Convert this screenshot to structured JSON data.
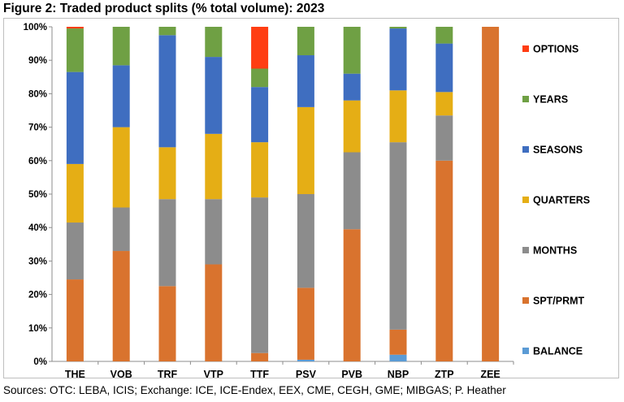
{
  "title": "Figure 2: Traded product splits (% total volume): 2023",
  "source": "Sources: OTC: LEBA, ICIS; Exchange: ICE, ICE-Endex, EEX, CME, CEGH, GME; MIBGAS; P. Heather",
  "chart_data": {
    "type": "bar",
    "stacked": true,
    "title": "Traded product splits (% total volume): 2023",
    "ylabel": "% total volume",
    "xlabel": "",
    "ylim": [
      0,
      100
    ],
    "yticks": [
      "0%",
      "10%",
      "20%",
      "30%",
      "40%",
      "50%",
      "60%",
      "70%",
      "80%",
      "90%",
      "100%"
    ],
    "grid": false,
    "legend_position": "right",
    "categories": [
      "THE",
      "VOB",
      "TRF",
      "VTP",
      "TTF",
      "PSV",
      "PVB",
      "NBP",
      "ZTP",
      "ZEE"
    ],
    "series": [
      {
        "name": "BALANCE",
        "color": "#5B9BD5",
        "values": [
          0,
          0,
          0,
          0,
          0,
          0.5,
          0,
          2,
          0,
          0
        ]
      },
      {
        "name": "SPT/PRMT",
        "color": "#D9732E",
        "values": [
          24.5,
          33,
          22.5,
          29,
          2.5,
          21.5,
          39.5,
          7.5,
          60,
          100
        ]
      },
      {
        "name": "MONTHS",
        "color": "#8C8C8C",
        "values": [
          17,
          13,
          26,
          19.5,
          46.5,
          28,
          23,
          56,
          13.5,
          0
        ]
      },
      {
        "name": "QUARTERS",
        "color": "#E5AE15",
        "values": [
          17.5,
          24,
          15.5,
          19.5,
          16.5,
          26,
          15.5,
          15.5,
          7,
          0
        ]
      },
      {
        "name": "SEASONS",
        "color": "#3F6EC0",
        "values": [
          27.5,
          18.5,
          33.5,
          23,
          16.5,
          15.5,
          8,
          18.5,
          14.5,
          0
        ]
      },
      {
        "name": "YEARS",
        "color": "#6FA044",
        "values": [
          13,
          11.5,
          2.5,
          9,
          5.5,
          8.5,
          14,
          0.5,
          5,
          0
        ]
      },
      {
        "name": "OPTIONS",
        "color": "#FF3D12",
        "values": [
          0.5,
          0,
          0,
          0,
          12.5,
          0,
          0,
          0,
          0,
          0
        ]
      }
    ],
    "legend_order": [
      "OPTIONS",
      "YEARS",
      "SEASONS",
      "QUARTERS",
      "MONTHS",
      "SPT/PRMT",
      "BALANCE"
    ]
  }
}
